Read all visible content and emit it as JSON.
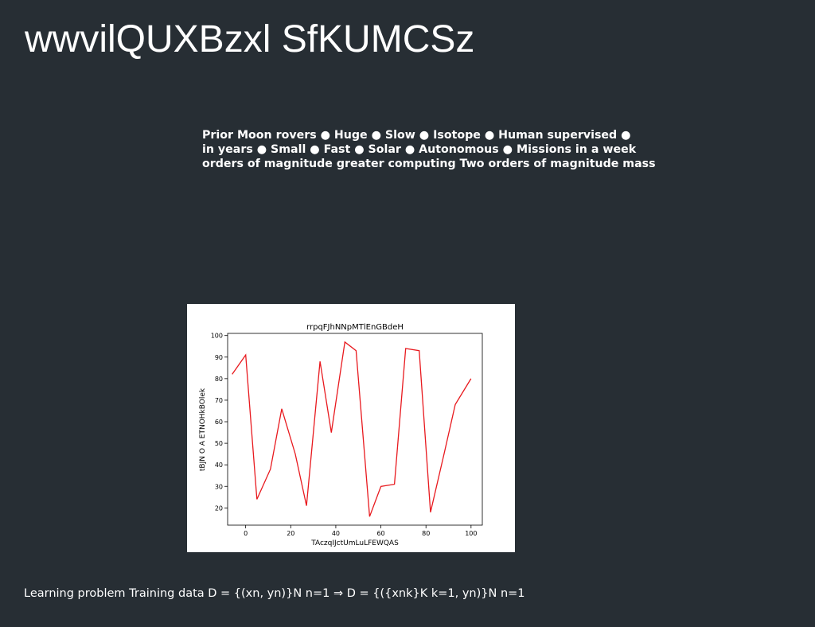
{
  "slide": {
    "title": "wwvilQUXBzxl SfKUMCSz",
    "comparison_lines": [
      "Prior Moon rovers ● Huge ● Slow ● Isotope ● Human supervised ●",
      "in years ● Small ● Fast ● Solar ● Autonomous ● Missions in a week",
      "orders of magnitude greater computing Two orders of magnitude mass"
    ],
    "footer": "Learning problem Training data D = {(xn, yn)}N n=1 ⇒ D = {({xnk}K k=1, yn)}N n=1"
  },
  "colors": {
    "background": "#272e34",
    "text": "#ffffff",
    "line": "#e8191e"
  },
  "chart_data": {
    "type": "line",
    "title": "rrpqFJhNNpMTlEnGBdeH",
    "xlabel": "TAczqIJctUmLuLFEWQAS",
    "ylabel": "tBJN O A ETNOHkBOlek",
    "xlim": [
      -8,
      105
    ],
    "ylim": [
      12,
      101
    ],
    "xticks": [
      0,
      20,
      40,
      60,
      80,
      100
    ],
    "yticks": [
      20,
      30,
      40,
      50,
      60,
      70,
      80,
      90,
      100
    ],
    "grid": false,
    "series": [
      {
        "x": [
          -6,
          0,
          5,
          11,
          16,
          22,
          27,
          33,
          38,
          44,
          49,
          55,
          60,
          66,
          71,
          77,
          82,
          88,
          93,
          100
        ],
        "y": [
          82,
          91,
          24,
          38,
          66,
          45,
          21,
          88,
          55,
          97,
          93,
          16,
          30,
          31,
          94,
          93,
          18,
          45,
          68,
          80
        ]
      }
    ]
  }
}
